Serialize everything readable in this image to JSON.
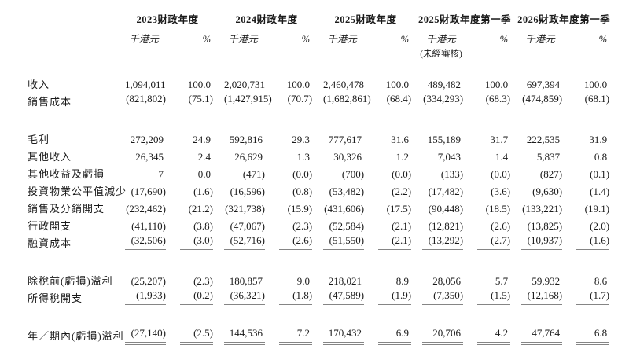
{
  "colors": {
    "background": "#ffffff",
    "text": "#1a1a1a",
    "rule": "#858585"
  },
  "table": {
    "col_groups": [
      {
        "year": "2023財政年度",
        "sub_value": "千港元",
        "sub_pct": "%",
        "note": ""
      },
      {
        "year": "2024財政年度",
        "sub_value": "千港元",
        "sub_pct": "%",
        "note": ""
      },
      {
        "year": "2025財政年度",
        "sub_value": "千港元",
        "sub_pct": "%",
        "note": ""
      },
      {
        "year": "2025財政年度第一季",
        "sub_value": "千港元",
        "sub_pct": "%",
        "note": "(未經審核)"
      },
      {
        "year": "2026財政年度第一季",
        "sub_value": "千港元",
        "sub_pct": "%",
        "note": ""
      }
    ],
    "rows": [
      {
        "label": "收入",
        "underline": "none",
        "values": [
          "1,094,011",
          "100.0",
          "2,020,731",
          "100.0",
          "2,460,478",
          "100.0",
          "489,482",
          "100.0",
          "697,394",
          "100.0"
        ]
      },
      {
        "label": "銷售成本",
        "underline": "single",
        "values": [
          "(821,802)",
          "(75.1)",
          "(1,427,915)",
          "(70.7)",
          "(1,682,861)",
          "(68.4)",
          "(334,293)",
          "(68.3)",
          "(474,859)",
          "(68.1)"
        ]
      },
      {
        "label": "毛利",
        "underline": "none",
        "values": [
          "272,209",
          "24.9",
          "592,816",
          "29.3",
          "777,617",
          "31.6",
          "155,189",
          "31.7",
          "222,535",
          "31.9"
        ]
      },
      {
        "label": "其他收入",
        "underline": "none",
        "values": [
          "26,345",
          "2.4",
          "26,629",
          "1.3",
          "30,326",
          "1.2",
          "7,043",
          "1.4",
          "5,837",
          "0.8"
        ]
      },
      {
        "label": "其他收益及虧損",
        "underline": "none",
        "values": [
          "7",
          "0.0",
          "(471)",
          "(0.0)",
          "(700)",
          "(0.0)",
          "(133)",
          "(0.0)",
          "(827)",
          "(0.1)"
        ]
      },
      {
        "label": "投資物業公平值減少",
        "underline": "none",
        "values": [
          "(17,690)",
          "(1.6)",
          "(16,596)",
          "(0.8)",
          "(53,482)",
          "(2.2)",
          "(17,482)",
          "(3.6)",
          "(9,630)",
          "(1.4)"
        ]
      },
      {
        "label": "銷售及分銷開支",
        "underline": "none",
        "values": [
          "(232,462)",
          "(21.2)",
          "(321,738)",
          "(15.9)",
          "(431,606)",
          "(17.5)",
          "(90,448)",
          "(18.5)",
          "(133,221)",
          "(19.1)"
        ]
      },
      {
        "label": "行政開支",
        "underline": "none",
        "values": [
          "(41,110)",
          "(3.8)",
          "(47,067)",
          "(2.3)",
          "(52,584)",
          "(2.1)",
          "(12,821)",
          "(2.6)",
          "(13,825)",
          "(2.0)"
        ]
      },
      {
        "label": "融資成本",
        "underline": "single",
        "values": [
          "(32,506)",
          "(3.0)",
          "(52,716)",
          "(2.6)",
          "(51,550)",
          "(2.1)",
          "(13,292)",
          "(2.7)",
          "(10,937)",
          "(1.6)"
        ]
      },
      {
        "label": "除稅前(虧損)溢利",
        "underline": "none",
        "values": [
          "(25,207)",
          "(2.3)",
          "180,857",
          "9.0",
          "218,021",
          "8.9",
          "28,056",
          "5.7",
          "59,932",
          "8.6"
        ]
      },
      {
        "label": "所得稅開支",
        "underline": "single",
        "values": [
          "(1,933)",
          "(0.2)",
          "(36,321)",
          "(1.8)",
          "(47,589)",
          "(1.9)",
          "(7,350)",
          "(1.5)",
          "(12,168)",
          "(1.7)"
        ]
      },
      {
        "label": "年／期內(虧損)溢利",
        "underline": "double",
        "values": [
          "(27,140)",
          "(2.5)",
          "144,536",
          "7.2",
          "170,432",
          "6.9",
          "20,706",
          "4.2",
          "47,764",
          "6.8"
        ]
      }
    ]
  }
}
